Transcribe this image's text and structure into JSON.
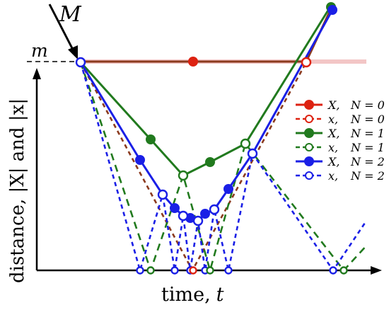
{
  "labels": {
    "big_m": "M",
    "small_m": "m",
    "x_axis": "time,",
    "x_axis_var": "t",
    "y_axis": "distance, |X| and |x|"
  },
  "colors": {
    "red": "#dd2211",
    "brown": "#8b3a1e",
    "green": "#217a1e",
    "blue": "#1a1fe6",
    "axis": "#000000"
  },
  "legend": [
    {
      "kind": "solid-filled",
      "color": "#dd2211",
      "var": "X,",
      "n": "N = 0"
    },
    {
      "kind": "dashed-open",
      "color": "#dd2211",
      "var": "x,",
      "n": "N = 0"
    },
    {
      "kind": "solid-filled",
      "color": "#217a1e",
      "var": "X,",
      "n": "N = 1"
    },
    {
      "kind": "dashed-open",
      "color": "#217a1e",
      "var": "x,",
      "n": "N = 1"
    },
    {
      "kind": "solid-filled",
      "color": "#1a1fe6",
      "var": "X,",
      "n": "N = 2"
    },
    {
      "kind": "dashed-open",
      "color": "#1a1fe6",
      "var": "x,",
      "n": "N = 2"
    }
  ]
}
